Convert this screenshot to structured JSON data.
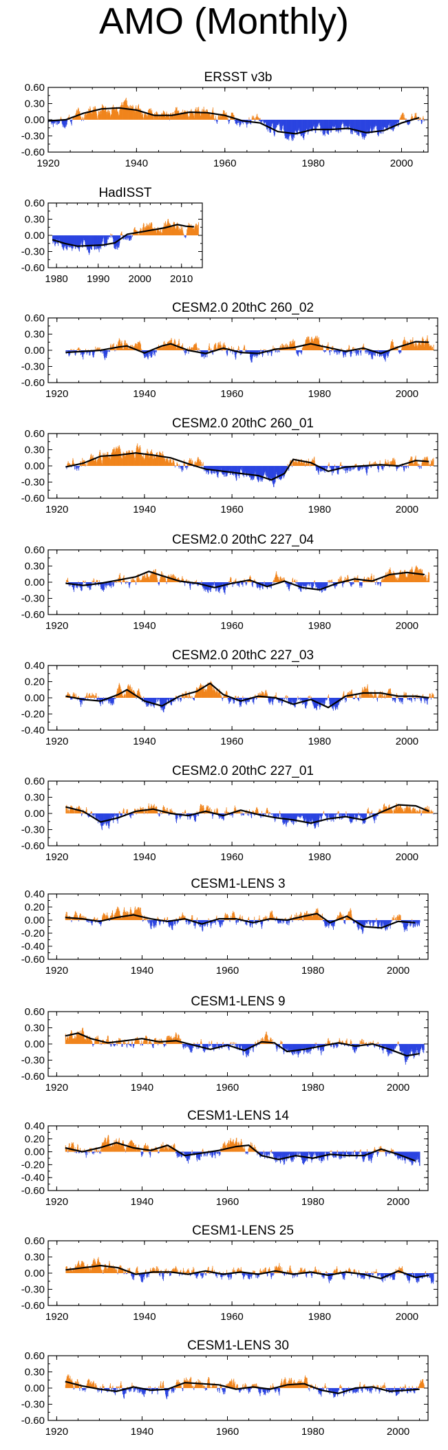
{
  "page_title": "AMO (Monthly)",
  "colors": {
    "positive": "#f0841c",
    "negative": "#2b44e0",
    "smooth": "#000000",
    "frame": "#000000"
  },
  "chart_data": [
    {
      "type": "bar",
      "title": "ERSST v3b",
      "xlim": [
        1920,
        2006
      ],
      "ylim": [
        -0.6,
        0.6
      ],
      "xticks": [
        1920,
        1940,
        1960,
        1980,
        2000
      ],
      "yticks": [
        0.6,
        0.3,
        0.0,
        -0.3,
        -0.6
      ],
      "ytick_labels": [
        "0.60",
        "0.30",
        "0.00",
        "-0.30",
        "-0.60"
      ],
      "smooth": [
        [
          1920,
          -0.02
        ],
        [
          1924,
          0.0
        ],
        [
          1928,
          0.12
        ],
        [
          1932,
          0.2
        ],
        [
          1936,
          0.22
        ],
        [
          1940,
          0.18
        ],
        [
          1944,
          0.08
        ],
        [
          1948,
          0.08
        ],
        [
          1952,
          0.14
        ],
        [
          1956,
          0.13
        ],
        [
          1960,
          0.08
        ],
        [
          1964,
          -0.02
        ],
        [
          1968,
          -0.06
        ],
        [
          1972,
          -0.22
        ],
        [
          1976,
          -0.26
        ],
        [
          1980,
          -0.18
        ],
        [
          1984,
          -0.18
        ],
        [
          1988,
          -0.16
        ],
        [
          1992,
          -0.24
        ],
        [
          1996,
          -0.2
        ],
        [
          2000,
          -0.06
        ],
        [
          2004,
          0.04
        ]
      ]
    },
    {
      "type": "bar",
      "title": "HadISST",
      "xlim": [
        1978,
        2015
      ],
      "ylim": [
        -0.6,
        0.6
      ],
      "xticks": [
        1980,
        1990,
        2000,
        2010
      ],
      "yticks": [
        0.6,
        0.3,
        0.0,
        -0.3,
        -0.6
      ],
      "ytick_labels": [
        "0.60",
        "0.30",
        "0.00",
        "-0.30",
        "-0.60"
      ],
      "smooth": [
        [
          1979,
          -0.08
        ],
        [
          1982,
          -0.15
        ],
        [
          1985,
          -0.2
        ],
        [
          1988,
          -0.19
        ],
        [
          1991,
          -0.18
        ],
        [
          1994,
          -0.14
        ],
        [
          1997,
          0.02
        ],
        [
          2000,
          0.06
        ],
        [
          2003,
          0.1
        ],
        [
          2006,
          0.14
        ],
        [
          2009,
          0.2
        ],
        [
          2011,
          0.17
        ],
        [
          2013,
          0.16
        ]
      ]
    },
    {
      "type": "bar",
      "title": "CESM2.0 20thC 260_02",
      "xlim": [
        1918,
        2007
      ],
      "ylim": [
        -0.6,
        0.6
      ],
      "xticks": [
        1920,
        1940,
        1960,
        1980,
        2000
      ],
      "yticks": [
        0.6,
        0.3,
        0.0,
        -0.3,
        -0.6
      ],
      "ytick_labels": [
        "0.60",
        "0.30",
        "0.00",
        "-0.30",
        "-0.60"
      ],
      "smooth": [
        [
          1922,
          -0.04
        ],
        [
          1926,
          -0.02
        ],
        [
          1930,
          0.0
        ],
        [
          1934,
          0.06
        ],
        [
          1936,
          0.08
        ],
        [
          1940,
          -0.05
        ],
        [
          1944,
          0.08
        ],
        [
          1946,
          0.12
        ],
        [
          1950,
          0.0
        ],
        [
          1954,
          -0.06
        ],
        [
          1958,
          0.04
        ],
        [
          1962,
          -0.04
        ],
        [
          1966,
          -0.06
        ],
        [
          1970,
          0.02
        ],
        [
          1974,
          0.05
        ],
        [
          1978,
          0.12
        ],
        [
          1982,
          0.05
        ],
        [
          1986,
          -0.02
        ],
        [
          1990,
          0.04
        ],
        [
          1994,
          -0.06
        ],
        [
          1998,
          0.06
        ],
        [
          2002,
          0.16
        ],
        [
          2005,
          0.15
        ]
      ]
    },
    {
      "type": "bar",
      "title": "CESM2.0 20thC 260_01",
      "xlim": [
        1918,
        2007
      ],
      "ylim": [
        -0.6,
        0.6
      ],
      "xticks": [
        1920,
        1940,
        1960,
        1980,
        2000
      ],
      "yticks": [
        0.6,
        0.3,
        0.0,
        -0.3,
        -0.6
      ],
      "ytick_labels": [
        "0.60",
        "0.30",
        "0.00",
        "-0.30",
        "-0.60"
      ],
      "smooth": [
        [
          1922,
          -0.02
        ],
        [
          1926,
          0.05
        ],
        [
          1930,
          0.18
        ],
        [
          1934,
          0.2
        ],
        [
          1938,
          0.24
        ],
        [
          1942,
          0.2
        ],
        [
          1946,
          0.15
        ],
        [
          1950,
          0.04
        ],
        [
          1954,
          -0.06
        ],
        [
          1958,
          -0.1
        ],
        [
          1962,
          -0.14
        ],
        [
          1966,
          -0.18
        ],
        [
          1969,
          -0.26
        ],
        [
          1972,
          -0.14
        ],
        [
          1974,
          0.12
        ],
        [
          1978,
          0.06
        ],
        [
          1982,
          -0.1
        ],
        [
          1986,
          -0.02
        ],
        [
          1990,
          0.0
        ],
        [
          1994,
          0.02
        ],
        [
          1998,
          0.0
        ],
        [
          2002,
          0.1
        ],
        [
          2005,
          0.08
        ]
      ]
    },
    {
      "type": "bar",
      "title": "CESM2.0 20thC 227_04",
      "xlim": [
        1918,
        2007
      ],
      "ylim": [
        -0.6,
        0.6
      ],
      "xticks": [
        1920,
        1940,
        1960,
        1980,
        2000
      ],
      "yticks": [
        0.6,
        0.3,
        0.0,
        -0.3,
        -0.6
      ],
      "ytick_labels": [
        "0.60",
        "0.30",
        "0.00",
        "-0.30",
        "-0.60"
      ],
      "smooth": [
        [
          1922,
          -0.02
        ],
        [
          1926,
          -0.06
        ],
        [
          1930,
          -0.02
        ],
        [
          1934,
          0.04
        ],
        [
          1938,
          0.1
        ],
        [
          1941,
          0.2
        ],
        [
          1944,
          0.12
        ],
        [
          1948,
          0.02
        ],
        [
          1952,
          -0.02
        ],
        [
          1956,
          -0.1
        ],
        [
          1960,
          -0.02
        ],
        [
          1964,
          0.04
        ],
        [
          1968,
          -0.08
        ],
        [
          1972,
          0.02
        ],
        [
          1976,
          -0.1
        ],
        [
          1980,
          -0.14
        ],
        [
          1984,
          -0.02
        ],
        [
          1988,
          0.06
        ],
        [
          1992,
          0.02
        ],
        [
          1996,
          0.14
        ],
        [
          2000,
          0.18
        ],
        [
          2004,
          0.14
        ]
      ]
    },
    {
      "type": "bar",
      "title": "CESM2.0 20thC 227_03",
      "xlim": [
        1918,
        2007
      ],
      "ylim": [
        -0.4,
        0.4
      ],
      "xticks": [
        1920,
        1940,
        1960,
        1980,
        2000
      ],
      "yticks": [
        0.4,
        0.2,
        0.0,
        -0.2,
        -0.4
      ],
      "ytick_labels": [
        "0.40",
        "0.20",
        "0.00",
        "-0.20",
        "-0.40"
      ],
      "smooth": [
        [
          1922,
          0.02
        ],
        [
          1926,
          -0.02
        ],
        [
          1930,
          -0.04
        ],
        [
          1934,
          0.04
        ],
        [
          1936,
          0.1
        ],
        [
          1940,
          -0.04
        ],
        [
          1944,
          -0.1
        ],
        [
          1948,
          0.02
        ],
        [
          1952,
          0.08
        ],
        [
          1955,
          0.18
        ],
        [
          1958,
          0.04
        ],
        [
          1962,
          -0.04
        ],
        [
          1966,
          0.02
        ],
        [
          1970,
          0.0
        ],
        [
          1974,
          -0.08
        ],
        [
          1978,
          -0.02
        ],
        [
          1982,
          -0.12
        ],
        [
          1986,
          0.02
        ],
        [
          1990,
          0.06
        ],
        [
          1994,
          0.06
        ],
        [
          1998,
          0.02
        ],
        [
          2002,
          0.02
        ],
        [
          2005,
          0.0
        ]
      ]
    },
    {
      "type": "bar",
      "title": "CESM2.0 20thC 227_01",
      "xlim": [
        1918,
        2007
      ],
      "ylim": [
        -0.6,
        0.6
      ],
      "xticks": [
        1920,
        1940,
        1960,
        1980,
        2000
      ],
      "yticks": [
        0.6,
        0.3,
        0.0,
        -0.3,
        -0.6
      ],
      "ytick_labels": [
        "0.60",
        "0.30",
        "0.00",
        "-0.30",
        "-0.60"
      ],
      "smooth": [
        [
          1922,
          0.12
        ],
        [
          1926,
          0.04
        ],
        [
          1930,
          -0.16
        ],
        [
          1934,
          -0.08
        ],
        [
          1938,
          0.04
        ],
        [
          1942,
          0.08
        ],
        [
          1946,
          0.0
        ],
        [
          1950,
          -0.04
        ],
        [
          1954,
          0.04
        ],
        [
          1958,
          -0.04
        ],
        [
          1962,
          0.06
        ],
        [
          1966,
          -0.02
        ],
        [
          1970,
          -0.08
        ],
        [
          1974,
          -0.12
        ],
        [
          1978,
          -0.18
        ],
        [
          1982,
          -0.1
        ],
        [
          1986,
          -0.06
        ],
        [
          1990,
          -0.12
        ],
        [
          1994,
          0.02
        ],
        [
          1998,
          0.16
        ],
        [
          2002,
          0.14
        ],
        [
          2005,
          0.04
        ]
      ]
    },
    {
      "type": "bar",
      "title": "CESM1-LENS 3",
      "xlim": [
        1918,
        2007
      ],
      "ylim": [
        -0.6,
        0.4
      ],
      "xticks": [
        1920,
        1940,
        1960,
        1980,
        2000
      ],
      "yticks": [
        0.4,
        0.2,
        0.0,
        -0.2,
        -0.4,
        -0.6
      ],
      "ytick_labels": [
        "0.40",
        "0.20",
        "0.00",
        "-0.20",
        "-0.40",
        "-0.60"
      ],
      "smooth": [
        [
          1922,
          0.04
        ],
        [
          1926,
          0.02
        ],
        [
          1930,
          -0.02
        ],
        [
          1934,
          0.04
        ],
        [
          1938,
          0.08
        ],
        [
          1942,
          0.02
        ],
        [
          1946,
          -0.02
        ],
        [
          1950,
          0.02
        ],
        [
          1954,
          -0.06
        ],
        [
          1958,
          0.02
        ],
        [
          1962,
          0.02
        ],
        [
          1966,
          -0.04
        ],
        [
          1970,
          0.02
        ],
        [
          1974,
          0.0
        ],
        [
          1978,
          0.06
        ],
        [
          1981,
          0.1
        ],
        [
          1984,
          -0.04
        ],
        [
          1988,
          0.06
        ],
        [
          1992,
          -0.1
        ],
        [
          1996,
          -0.12
        ],
        [
          2000,
          -0.02
        ],
        [
          2004,
          -0.04
        ]
      ]
    },
    {
      "type": "bar",
      "title": "CESM1-LENS 9",
      "xlim": [
        1918,
        2007
      ],
      "ylim": [
        -0.6,
        0.6
      ],
      "xticks": [
        1920,
        1940,
        1960,
        1980,
        2000
      ],
      "yticks": [
        0.6,
        0.3,
        0.0,
        -0.3,
        -0.6
      ],
      "ytick_labels": [
        "0.60",
        "0.30",
        "0.00",
        "-0.30",
        "-0.60"
      ],
      "smooth": [
        [
          1922,
          0.15
        ],
        [
          1925,
          0.2
        ],
        [
          1928,
          0.1
        ],
        [
          1932,
          0.02
        ],
        [
          1936,
          0.06
        ],
        [
          1940,
          0.1
        ],
        [
          1944,
          0.04
        ],
        [
          1948,
          0.06
        ],
        [
          1952,
          -0.02
        ],
        [
          1956,
          -0.1
        ],
        [
          1960,
          -0.02
        ],
        [
          1964,
          -0.12
        ],
        [
          1968,
          0.04
        ],
        [
          1971,
          0.02
        ],
        [
          1974,
          -0.14
        ],
        [
          1978,
          -0.1
        ],
        [
          1982,
          -0.04
        ],
        [
          1986,
          0.02
        ],
        [
          1990,
          -0.04
        ],
        [
          1994,
          0.0
        ],
        [
          1998,
          -0.1
        ],
        [
          2002,
          -0.22
        ],
        [
          2005,
          -0.18
        ]
      ]
    },
    {
      "type": "bar",
      "title": "CESM1-LENS 14",
      "xlim": [
        1918,
        2007
      ],
      "ylim": [
        -0.6,
        0.4
      ],
      "xticks": [
        1920,
        1940,
        1960,
        1980,
        2000
      ],
      "yticks": [
        0.4,
        0.2,
        0.0,
        -0.2,
        -0.4,
        -0.6
      ],
      "ytick_labels": [
        "0.40",
        "0.20",
        "0.00",
        "-0.20",
        "-0.40",
        "-0.60"
      ],
      "smooth": [
        [
          1922,
          0.06
        ],
        [
          1926,
          0.0
        ],
        [
          1930,
          0.06
        ],
        [
          1934,
          0.14
        ],
        [
          1938,
          0.06
        ],
        [
          1942,
          0.02
        ],
        [
          1946,
          0.1
        ],
        [
          1950,
          -0.06
        ],
        [
          1954,
          -0.02
        ],
        [
          1958,
          0.02
        ],
        [
          1962,
          0.08
        ],
        [
          1965,
          0.1
        ],
        [
          1968,
          -0.06
        ],
        [
          1972,
          -0.12
        ],
        [
          1976,
          -0.06
        ],
        [
          1980,
          -0.1
        ],
        [
          1984,
          -0.04
        ],
        [
          1988,
          -0.06
        ],
        [
          1992,
          -0.06
        ],
        [
          1996,
          0.04
        ],
        [
          2000,
          -0.04
        ],
        [
          2004,
          -0.14
        ]
      ]
    },
    {
      "type": "bar",
      "title": "CESM1-LENS 25",
      "xlim": [
        1918,
        2007
      ],
      "ylim": [
        -0.6,
        0.6
      ],
      "xticks": [
        1920,
        1940,
        1960,
        1980,
        2000
      ],
      "yticks": [
        0.6,
        0.3,
        0.0,
        -0.3,
        -0.6
      ],
      "ytick_labels": [
        "0.60",
        "0.30",
        "0.00",
        "-0.30",
        "-0.60"
      ],
      "smooth": [
        [
          1922,
          0.06
        ],
        [
          1926,
          0.1
        ],
        [
          1930,
          0.14
        ],
        [
          1934,
          0.1
        ],
        [
          1938,
          -0.02
        ],
        [
          1942,
          0.02
        ],
        [
          1946,
          0.02
        ],
        [
          1950,
          -0.02
        ],
        [
          1954,
          0.04
        ],
        [
          1958,
          -0.02
        ],
        [
          1962,
          0.02
        ],
        [
          1966,
          -0.02
        ],
        [
          1970,
          0.04
        ],
        [
          1974,
          -0.02
        ],
        [
          1978,
          0.02
        ],
        [
          1982,
          -0.04
        ],
        [
          1986,
          0.02
        ],
        [
          1990,
          -0.02
        ],
        [
          1994,
          -0.1
        ],
        [
          1998,
          0.04
        ],
        [
          2002,
          -0.08
        ],
        [
          2005,
          -0.04
        ]
      ]
    },
    {
      "type": "bar",
      "title": "CESM1-LENS 30",
      "xlim": [
        1918,
        2007
      ],
      "ylim": [
        -0.6,
        0.6
      ],
      "xticks": [
        1920,
        1940,
        1960,
        1980,
        2000
      ],
      "yticks": [
        0.6,
        0.3,
        0.0,
        -0.3,
        -0.6
      ],
      "ytick_labels": [
        "0.60",
        "0.30",
        "0.00",
        "-0.30",
        "-0.60"
      ],
      "smooth": [
        [
          1922,
          0.12
        ],
        [
          1926,
          0.04
        ],
        [
          1930,
          -0.02
        ],
        [
          1934,
          -0.06
        ],
        [
          1938,
          0.02
        ],
        [
          1942,
          -0.04
        ],
        [
          1946,
          -0.02
        ],
        [
          1950,
          0.1
        ],
        [
          1954,
          0.08
        ],
        [
          1958,
          0.06
        ],
        [
          1962,
          -0.02
        ],
        [
          1966,
          0.02
        ],
        [
          1970,
          -0.02
        ],
        [
          1974,
          0.06
        ],
        [
          1978,
          0.08
        ],
        [
          1982,
          -0.04
        ],
        [
          1986,
          -0.1
        ],
        [
          1990,
          0.0
        ],
        [
          1994,
          0.02
        ],
        [
          1998,
          -0.06
        ],
        [
          2002,
          -0.04
        ],
        [
          2005,
          -0.02
        ]
      ]
    }
  ]
}
